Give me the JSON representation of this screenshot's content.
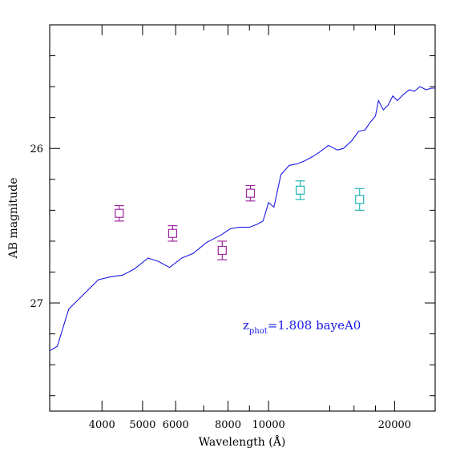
{
  "chart_data": {
    "type": "line",
    "title": "",
    "xlabel": "Wavelength (Å)",
    "ylabel": "AB magnitude",
    "x_scale": "log",
    "y_inverted": true,
    "xlim": [
      3000,
      25000
    ],
    "ylim": [
      27.7,
      25.2
    ],
    "x_tick_labels": [
      {
        "value": 4000,
        "label": "4000"
      },
      {
        "value": 5000,
        "label": "5000"
      },
      {
        "value": 6000,
        "label": "6000"
      },
      {
        "value": 8000,
        "label": "8000"
      },
      {
        "value": 10000,
        "label": "10000"
      },
      {
        "value": 20000,
        "label": "20000"
      }
    ],
    "x_minor_ticks": [
      3000,
      7000,
      9000,
      14000,
      16000,
      18000
    ],
    "y_tick_labels": [
      {
        "value": 26,
        "label": "26"
      },
      {
        "value": 27,
        "label": "27"
      }
    ],
    "y_minor_ticks": [
      25.2,
      25.4,
      25.6,
      25.8,
      26.2,
      26.4,
      26.6,
      26.8,
      27.2,
      27.4,
      27.6
    ],
    "grid": false,
    "legend": "none",
    "annotation": {
      "prefix": "z",
      "subscript": "phot",
      "text": "=1.808 bayeA0",
      "color": "#1a1ae6"
    },
    "sed": {
      "name": "",
      "color": "#1a1ae6",
      "points": [
        [
          3000,
          27.31
        ],
        [
          3130,
          27.28
        ],
        [
          3330,
          27.04
        ],
        [
          3920,
          26.85
        ],
        [
          4200,
          26.83
        ],
        [
          4480,
          26.82
        ],
        [
          4780,
          26.78
        ],
        [
          5150,
          26.71
        ],
        [
          5450,
          26.73
        ],
        [
          5800,
          26.77
        ],
        [
          6200,
          26.71
        ],
        [
          6600,
          26.68
        ],
        [
          7100,
          26.61
        ],
        [
          7700,
          26.56
        ],
        [
          8100,
          26.52
        ],
        [
          8500,
          26.51
        ],
        [
          9000,
          26.51
        ],
        [
          9400,
          26.49
        ],
        [
          9700,
          26.47
        ],
        [
          10000,
          26.35
        ],
        [
          10300,
          26.38
        ],
        [
          10700,
          26.17
        ],
        [
          11200,
          26.11
        ],
        [
          11700,
          26.1
        ],
        [
          12200,
          26.08
        ],
        [
          12800,
          26.05
        ],
        [
          13300,
          26.02
        ],
        [
          13900,
          25.98
        ],
        [
          14600,
          26.01
        ],
        [
          15100,
          26.0
        ],
        [
          15800,
          25.95
        ],
        [
          16400,
          25.89
        ],
        [
          17000,
          25.88
        ],
        [
          17500,
          25.83
        ],
        [
          18000,
          25.79
        ],
        [
          18300,
          25.69
        ],
        [
          18800,
          25.75
        ],
        [
          19300,
          25.72
        ],
        [
          19800,
          25.66
        ],
        [
          20300,
          25.69
        ],
        [
          21000,
          25.65
        ],
        [
          21700,
          25.62
        ],
        [
          22300,
          25.63
        ],
        [
          23000,
          25.6
        ],
        [
          23800,
          25.62
        ],
        [
          24500,
          25.61
        ],
        [
          25000,
          25.61
        ]
      ]
    },
    "photometry": [
      {
        "x": 4400,
        "y": 26.42,
        "err": 0.05,
        "color": "#a0279e"
      },
      {
        "x": 5900,
        "y": 26.55,
        "err": 0.05,
        "color": "#a0279e"
      },
      {
        "x": 7750,
        "y": 26.66,
        "err": 0.06,
        "color": "#a0279e"
      },
      {
        "x": 9050,
        "y": 26.29,
        "err": 0.05,
        "color": "#a0279e"
      },
      {
        "x": 11900,
        "y": 26.27,
        "err": 0.06,
        "color": "#1fb5b2"
      },
      {
        "x": 16500,
        "y": 26.33,
        "err": 0.07,
        "color": "#1fb5b2"
      }
    ]
  }
}
